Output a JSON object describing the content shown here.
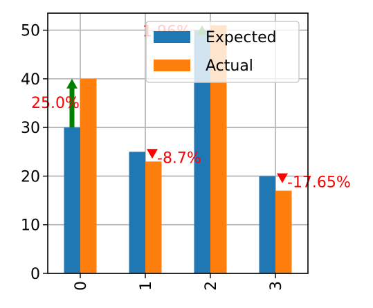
{
  "chart_data": {
    "type": "bar",
    "categories": [
      "0",
      "1",
      "2",
      "3"
    ],
    "series": [
      {
        "name": "Expected",
        "values": [
          30,
          25,
          50,
          20
        ],
        "color": "#1f77b4"
      },
      {
        "name": "Actual",
        "values": [
          40,
          23,
          51,
          17
        ],
        "color": "#ff7f0e"
      }
    ],
    "ylim": [
      0,
      53.5
    ],
    "yticks": [
      0,
      10,
      20,
      30,
      40,
      50
    ],
    "grid": true,
    "legend_position": "top-right",
    "annotations": [
      {
        "category": "0",
        "text": "25.0%",
        "direction": "up",
        "color": "#008000",
        "text_color": "#ff0000"
      },
      {
        "category": "1",
        "text": "-8.7%",
        "direction": "down",
        "color": "#ff0000",
        "text_color": "#ff0000"
      },
      {
        "category": "2",
        "text": "1.96%",
        "direction": "up",
        "color": "#008000",
        "text_color": "#ff0000"
      },
      {
        "category": "3",
        "text": "-17.65%",
        "direction": "down",
        "color": "#ff0000",
        "text_color": "#ff0000"
      }
    ]
  }
}
